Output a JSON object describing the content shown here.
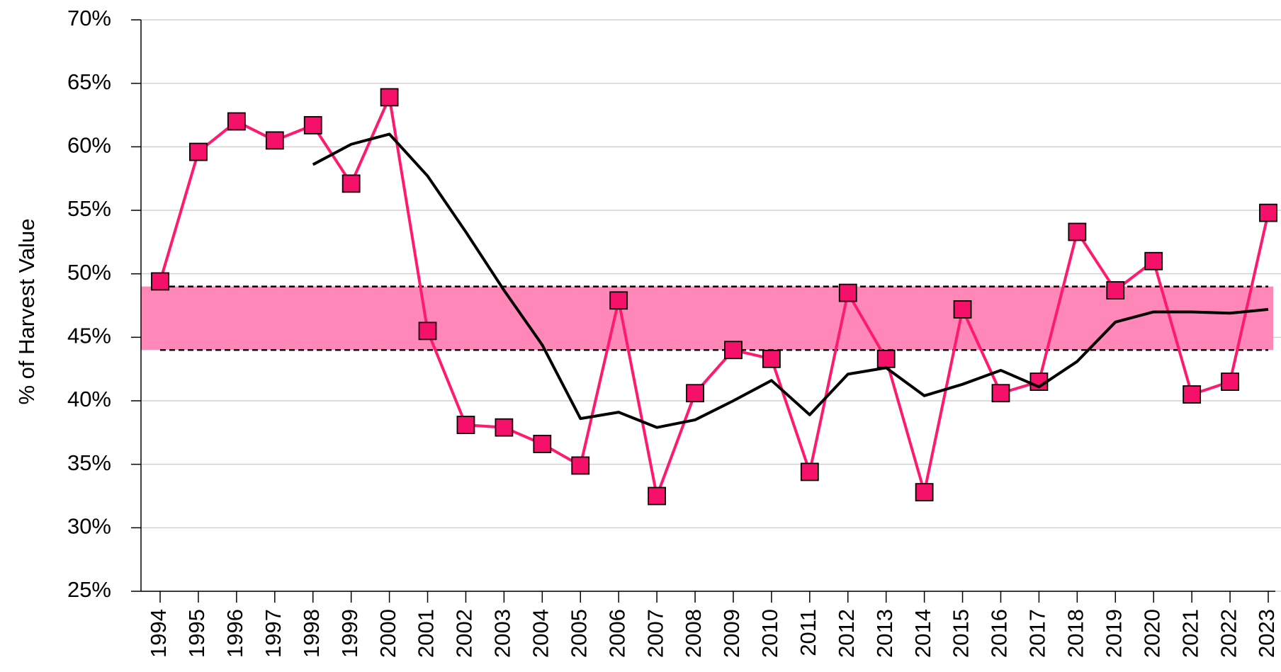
{
  "chart_data": {
    "type": "line",
    "y_label": "% of Harvest Value",
    "categories": [
      "1994",
      "1995",
      "1996",
      "1997",
      "1998",
      "1999",
      "2000",
      "2001",
      "2002",
      "2003",
      "2004",
      "2005",
      "2006",
      "2007",
      "2008",
      "2009",
      "2010",
      "2011",
      "2012",
      "2013",
      "2014",
      "2015",
      "2016",
      "2017",
      "2018",
      "2019",
      "2020",
      "2021",
      "2022",
      "2023"
    ],
    "series": [
      {
        "color": "#ff1a70",
        "marker": "square",
        "marker_color": "#f5106a",
        "values": [
          49.4,
          59.6,
          62.0,
          60.5,
          61.7,
          57.1,
          63.9,
          45.5,
          38.1,
          37.9,
          36.6,
          34.9,
          47.9,
          32.5,
          40.6,
          44.0,
          43.3,
          34.4,
          48.5,
          43.3,
          32.8,
          47.2,
          40.6,
          41.5,
          53.3,
          48.7,
          51.0,
          40.5,
          41.5,
          54.8
        ]
      },
      {
        "color": "#000000",
        "values": [
          null,
          null,
          null,
          null,
          58.6,
          60.2,
          61.0,
          57.7,
          53.3,
          48.7,
          44.4,
          38.6,
          39.1,
          37.9,
          38.5,
          40.0,
          41.6,
          38.9,
          42.1,
          42.6,
          40.4,
          41.3,
          42.4,
          41.1,
          43.1,
          46.2,
          47.0,
          47.0,
          46.9,
          47.2
        ]
      }
    ],
    "band": {
      "from": 44,
      "to": 49,
      "color": "#ff88b8"
    },
    "ylim": [
      25,
      70
    ],
    "yticks": [
      {
        "value": 25,
        "label": "25%"
      },
      {
        "value": 30,
        "label": "30%"
      },
      {
        "value": 35,
        "label": "35%"
      },
      {
        "value": 40,
        "label": "40%"
      },
      {
        "value": 45,
        "label": "45%"
      },
      {
        "value": 50,
        "label": "50%"
      },
      {
        "value": 55,
        "label": "55%"
      },
      {
        "value": 60,
        "label": "60%"
      },
      {
        "value": 65,
        "label": "65%"
      },
      {
        "value": 70,
        "label": "70%"
      }
    ],
    "grid": true
  }
}
